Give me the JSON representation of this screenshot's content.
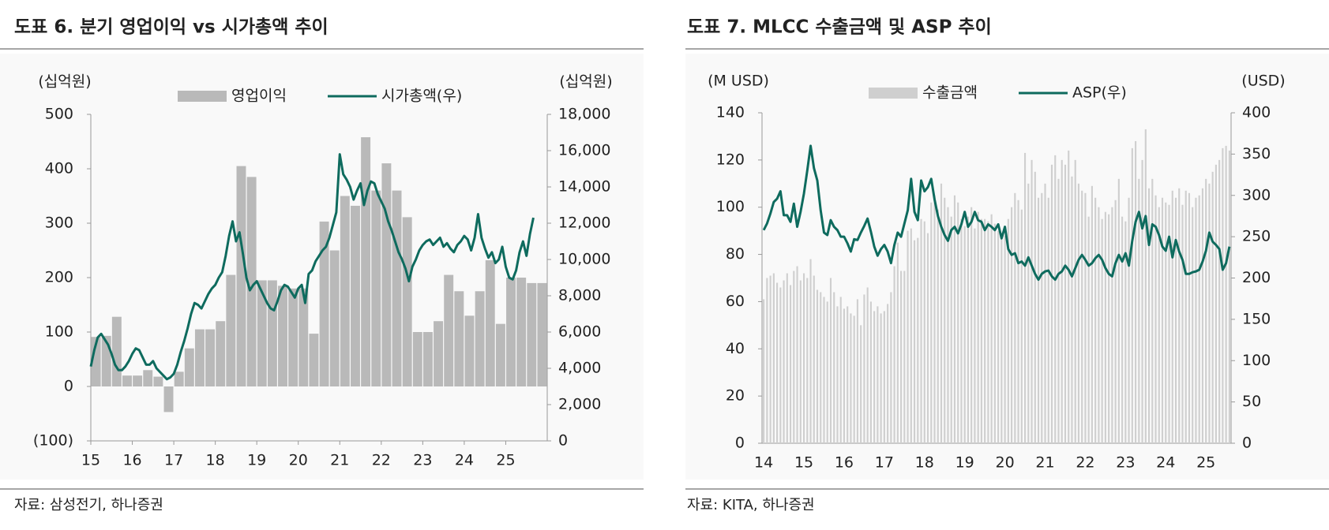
{
  "chart_data": [
    {
      "type": "combo",
      "title": "도표 6. 분기 영업이익 vs 시가총액 추이",
      "source": "자료: 삼성전기, 하나증권",
      "y_unit": "(십억원)",
      "y2_unit": "(십억원)",
      "xlim": [
        0,
        132
      ],
      "xticks": [
        {
          "value": 0,
          "label": "15"
        },
        {
          "value": 12,
          "label": "16"
        },
        {
          "value": 24,
          "label": "17"
        },
        {
          "value": 36,
          "label": "18"
        },
        {
          "value": 48,
          "label": "19"
        },
        {
          "value": 60,
          "label": "20"
        },
        {
          "value": 72,
          "label": "21"
        },
        {
          "value": 84,
          "label": "22"
        },
        {
          "value": 96,
          "label": "23"
        },
        {
          "value": 108,
          "label": "24"
        },
        {
          "value": 120,
          "label": "25"
        }
      ],
      "ylim": [
        -100,
        500
      ],
      "yticks": [
        {
          "value": -100,
          "label": "(100)"
        },
        0,
        100,
        200,
        300,
        400,
        500
      ],
      "y2lim": [
        0,
        18000
      ],
      "y2ticks": [
        0,
        {
          "value": 2000,
          "label": "2,000"
        },
        {
          "value": 4000,
          "label": "4,000"
        },
        {
          "value": 6000,
          "label": "6,000"
        },
        {
          "value": 8000,
          "label": "8,000"
        },
        {
          "value": 10000,
          "label": "10,000"
        },
        {
          "value": 12000,
          "label": "12,000"
        },
        {
          "value": 14000,
          "label": "14,000"
        },
        {
          "value": 16000,
          "label": "16,000"
        },
        {
          "value": 18000,
          "label": "18,000"
        }
      ],
      "series": [
        {
          "name": "영업이익",
          "type": "bar",
          "color": "#b9b9b9",
          "x": [
            0,
            3,
            6,
            9,
            12,
            15,
            18,
            21,
            24,
            27,
            30,
            33,
            36,
            39,
            42,
            45,
            48,
            51,
            54,
            57,
            60,
            63,
            66,
            69,
            72,
            75,
            78,
            81,
            84,
            87,
            90,
            93,
            96,
            99,
            102,
            105,
            108,
            111,
            114,
            117,
            120,
            123,
            126,
            129
          ],
          "values": [
            91,
            93,
            128,
            20,
            20,
            30,
            18,
            -47,
            27,
            70,
            105,
            105,
            120,
            205,
            405,
            385,
            195,
            195,
            185,
            180,
            180,
            97,
            303,
            250,
            350,
            332,
            458,
            360,
            410,
            360,
            311,
            100,
            100,
            120,
            205,
            175,
            130,
            175,
            232,
            115,
            200,
            200,
            190,
            190
          ]
        },
        {
          "name": "시가총액(우)",
          "type": "line",
          "axis": "y2",
          "color": "#0e6b5e",
          "x": [
            0,
            1,
            2,
            3,
            4,
            5,
            6,
            7,
            8,
            9,
            10,
            11,
            12,
            13,
            14,
            15,
            16,
            17,
            18,
            19,
            20,
            21,
            22,
            23,
            24,
            25,
            26,
            27,
            28,
            29,
            30,
            31,
            32,
            33,
            34,
            35,
            36,
            37,
            38,
            39,
            40,
            41,
            42,
            43,
            44,
            45,
            46,
            47,
            48,
            49,
            50,
            51,
            52,
            53,
            54,
            55,
            56,
            57,
            58,
            59,
            60,
            61,
            62,
            63,
            64,
            65,
            66,
            67,
            68,
            69,
            70,
            71,
            72,
            73,
            74,
            75,
            76,
            77,
            78,
            79,
            80,
            81,
            82,
            83,
            84,
            85,
            86,
            87,
            88,
            89,
            90,
            91,
            92,
            93,
            94,
            95,
            96,
            97,
            98,
            99,
            100,
            101,
            102,
            103,
            104,
            105,
            106,
            107,
            108,
            109,
            110,
            111,
            112,
            113,
            114,
            115,
            116,
            117,
            118,
            119,
            120,
            121,
            122,
            123,
            124,
            125,
            126,
            127,
            128
          ],
          "values": [
            4100,
            5000,
            5700,
            5900,
            5600,
            5300,
            4800,
            4200,
            3900,
            3900,
            4100,
            4400,
            4800,
            5100,
            5000,
            4600,
            4200,
            4200,
            4400,
            4000,
            3800,
            3600,
            3400,
            3500,
            3700,
            4200,
            4900,
            5500,
            6200,
            7000,
            7600,
            7500,
            7300,
            7700,
            8100,
            8400,
            8600,
            9000,
            9300,
            10200,
            11300,
            12100,
            11000,
            11500,
            10300,
            9000,
            8300,
            8600,
            8800,
            8400,
            8000,
            7600,
            7300,
            7200,
            7700,
            8300,
            8600,
            8500,
            8200,
            7900,
            8400,
            8600,
            7600,
            9200,
            9400,
            9900,
            10200,
            10500,
            10700,
            11200,
            11900,
            12600,
            15800,
            14700,
            14400,
            14000,
            13300,
            13800,
            14200,
            13000,
            13800,
            14300,
            14200,
            13600,
            13200,
            12800,
            12100,
            11600,
            11000,
            10400,
            10000,
            9500,
            8800,
            9600,
            10000,
            10500,
            10800,
            11000,
            11100,
            10800,
            11000,
            11200,
            10700,
            10900,
            10600,
            10400,
            10800,
            11000,
            11300,
            11100,
            10500,
            11200,
            12500,
            11200,
            10600,
            10100,
            10400,
            9800,
            10000,
            10700,
            9600,
            9000,
            8900,
            9400,
            10400,
            11000,
            10200,
            11400,
            12300
          ]
        }
      ]
    },
    {
      "type": "combo",
      "title": "도표 7. MLCC 수출금액 및 ASP 추이",
      "source": "자료: KITA, 하나증권",
      "y_unit": "(M USD)",
      "y2_unit": "(USD)",
      "categories": [
        "14",
        null,
        null,
        null,
        null,
        null,
        null,
        null,
        null,
        null,
        null,
        null,
        "15",
        null,
        null,
        null,
        null,
        null,
        null,
        null,
        null,
        null,
        null,
        null,
        "16",
        null,
        null,
        null,
        null,
        null,
        null,
        null,
        null,
        null,
        null,
        null,
        "17",
        null,
        null,
        null,
        null,
        null,
        null,
        null,
        null,
        null,
        null,
        null,
        "18",
        null,
        null,
        null,
        null,
        null,
        null,
        null,
        null,
        null,
        null,
        null,
        "19",
        null,
        null,
        null,
        null,
        null,
        null,
        null,
        null,
        null,
        null,
        null,
        "20",
        null,
        null,
        null,
        null,
        null,
        null,
        null,
        null,
        null,
        null,
        null,
        "21",
        null,
        null,
        null,
        null,
        null,
        null,
        null,
        null,
        null,
        null,
        null,
        "22",
        null,
        null,
        null,
        null,
        null,
        null,
        null,
        null,
        null,
        null,
        null,
        "23",
        null,
        null,
        null,
        null,
        null,
        null,
        null,
        null,
        null,
        null,
        null,
        "24",
        null,
        null,
        null,
        null,
        null,
        null,
        null,
        null,
        null,
        null,
        null,
        "25",
        null,
        null,
        null,
        null,
        null,
        null,
        null
      ],
      "ylim": [
        0,
        140
      ],
      "yticks": [
        0,
        20,
        40,
        60,
        80,
        100,
        120,
        140
      ],
      "y2lim": [
        0,
        400
      ],
      "y2ticks": [
        0,
        50,
        100,
        150,
        200,
        250,
        300,
        350,
        400
      ],
      "series": [
        {
          "name": "수출금액",
          "type": "bar",
          "color": "#cfcfcf",
          "values": [
            61,
            70,
            71,
            72,
            68,
            66,
            69,
            72,
            67,
            73,
            75,
            69,
            72,
            70,
            78,
            71,
            65,
            64,
            62,
            60,
            70,
            64,
            58,
            62,
            57,
            58,
            55,
            54,
            61,
            50,
            63,
            66,
            60,
            56,
            58,
            55,
            56,
            59,
            64,
            75,
            85,
            73,
            73,
            90,
            91,
            86,
            87,
            95,
            94,
            89,
            102,
            105,
            99,
            110,
            104,
            100,
            96,
            105,
            102,
            95,
            92,
            96,
            100,
            91,
            98,
            95,
            95,
            94,
            97,
            93,
            90,
            89,
            88,
            95,
            100,
            106,
            103,
            99,
            123,
            110,
            120,
            115,
            104,
            106,
            110,
            104,
            118,
            122,
            112,
            120,
            118,
            124,
            113,
            120,
            110,
            107,
            106,
            96,
            109,
            104,
            100,
            95,
            98,
            97,
            100,
            103,
            112,
            96,
            94,
            104,
            125,
            128,
            112,
            120,
            133,
            108,
            112,
            105,
            100,
            104,
            102,
            101,
            107,
            104,
            108,
            101,
            107,
            106,
            100,
            104,
            105,
            108,
            112,
            110,
            115,
            118,
            120,
            125,
            126,
            124
          ]
        },
        {
          "name": "ASP(우)",
          "type": "line",
          "axis": "y2",
          "color": "#0e6b5e",
          "values": [
            258,
            266,
            278,
            292,
            296,
            305,
            276,
            276,
            268,
            290,
            262,
            280,
            302,
            330,
            360,
            333,
            318,
            282,
            255,
            252,
            270,
            262,
            258,
            250,
            250,
            242,
            232,
            247,
            246,
            255,
            263,
            272,
            256,
            238,
            227,
            235,
            240,
            232,
            218,
            240,
            255,
            250,
            266,
            282,
            320,
            280,
            270,
            318,
            305,
            310,
            320,
            295,
            275,
            262,
            252,
            245,
            258,
            262,
            254,
            265,
            280,
            262,
            268,
            280,
            270,
            268,
            258,
            265,
            262,
            258,
            265,
            248,
            262,
            235,
            228,
            230,
            218,
            220,
            215,
            225,
            215,
            205,
            198,
            205,
            208,
            209,
            202,
            198,
            205,
            208,
            215,
            210,
            202,
            212,
            222,
            228,
            222,
            215,
            218,
            224,
            228,
            222,
            212,
            205,
            202,
            218,
            228,
            220,
            230,
            215,
            245,
            268,
            280,
            260,
            275,
            240,
            265,
            262,
            252,
            238,
            233,
            250,
            225,
            246,
            232,
            222,
            205,
            205,
            207,
            208,
            210,
            220,
            233,
            255,
            244,
            240,
            235,
            210,
            218,
            238
          ]
        }
      ]
    }
  ]
}
